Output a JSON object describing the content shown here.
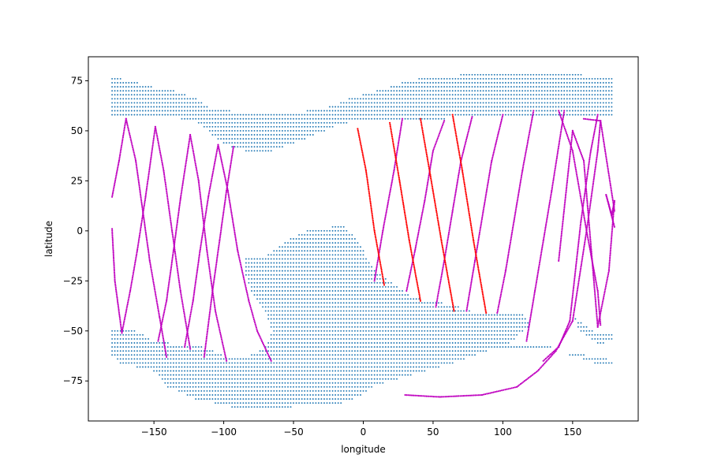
{
  "chart_data": {
    "type": "scatter",
    "title": "",
    "xlabel": "longitude",
    "ylabel": "latitude",
    "xlim": [
      -197,
      197
    ],
    "ylim": [
      -95,
      87
    ],
    "grid": false,
    "legend": "none",
    "x_ticks": [
      -150,
      -100,
      -50,
      0,
      50,
      100,
      150
    ],
    "y_ticks": [
      -75,
      -50,
      -25,
      0,
      25,
      50,
      75
    ],
    "x_tick_labels": [
      "−150",
      "−100",
      "−50",
      "0",
      "50",
      "100",
      "150"
    ],
    "y_tick_labels": [
      "−75",
      "−50",
      "−25",
      "0",
      "25",
      "50",
      "75"
    ],
    "colors": {
      "grid_points": "#1f77b4",
      "ascending_track": "#ff0000",
      "descending_track": "#bf00bf"
    },
    "series": [
      {
        "kind": "grid",
        "color": "#1f77b4",
        "spacing": 2,
        "regions": [
          [
            [
              -180,
              56
            ],
            [
              -180,
              77
            ],
            [
              -167,
              75
            ],
            [
              -150,
              72
            ],
            [
              -135,
              70
            ],
            [
              -122,
              67
            ],
            [
              -110,
              62
            ],
            [
              -95,
              60
            ],
            [
              -80,
              60
            ],
            [
              -60,
              60
            ],
            [
              -40,
              60
            ],
            [
              -25,
              62
            ],
            [
              -10,
              66
            ],
            [
              10,
              70
            ],
            [
              28,
              74
            ],
            [
              45,
              77
            ],
            [
              95,
              79
            ],
            [
              135,
              79
            ],
            [
              180,
              77
            ],
            [
              180,
              56
            ],
            [
              150,
              57
            ],
            [
              100,
              58
            ],
            [
              60,
              56
            ],
            [
              30,
              56
            ],
            [
              0,
              56
            ],
            [
              -20,
              52
            ],
            [
              -45,
              45
            ],
            [
              -65,
              40
            ],
            [
              -85,
              40
            ],
            [
              -100,
              43
            ],
            [
              -108,
              48
            ],
            [
              -120,
              55
            ],
            [
              -150,
              58
            ],
            [
              -180,
              56
            ]
          ],
          [
            [
              -85,
              -13
            ],
            [
              -70,
              -13
            ],
            [
              -55,
              -5
            ],
            [
              -40,
              0
            ],
            [
              -15,
              3
            ],
            [
              -5,
              -3
            ],
            [
              2,
              -12
            ],
            [
              10,
              -20
            ],
            [
              25,
              -28
            ],
            [
              35,
              -33
            ],
            [
              48,
              -35
            ],
            [
              65,
              -37
            ],
            [
              80,
              -41
            ],
            [
              100,
              -41
            ],
            [
              115,
              -41
            ],
            [
              120,
              -47
            ],
            [
              112,
              -52
            ],
            [
              105,
              -56
            ],
            [
              115,
              -57
            ],
            [
              145,
              -57
            ],
            [
              135,
              -58
            ],
            [
              90,
              -60
            ],
            [
              60,
              -67
            ],
            [
              30,
              -73
            ],
            [
              10,
              -77
            ],
            [
              0,
              -82
            ],
            [
              -15,
              -86
            ],
            [
              -50,
              -88
            ],
            [
              -95,
              -88
            ],
            [
              -120,
              -84
            ],
            [
              -140,
              -78
            ],
            [
              -150,
              -70
            ],
            [
              -175,
              -66
            ],
            [
              -180,
              -62
            ],
            [
              -180,
              -49
            ],
            [
              -165,
              -49
            ],
            [
              -150,
              -55
            ],
            [
              -115,
              -58
            ],
            [
              -100,
              -62
            ],
            [
              -80,
              -62
            ],
            [
              -70,
              -58
            ],
            [
              -65,
              -50
            ],
            [
              -70,
              -40
            ],
            [
              -80,
              -30
            ],
            [
              -85,
              -20
            ],
            [
              -85,
              -13
            ]
          ],
          [
            [
              150,
              -43
            ],
            [
              160,
              -47
            ],
            [
              168,
              -51
            ],
            [
              178,
              -51
            ],
            [
              180,
              -55
            ],
            [
              168,
              -57
            ],
            [
              155,
              -50
            ],
            [
              150,
              -43
            ]
          ],
          [
            [
              145,
              -60
            ],
            [
              160,
              -62
            ],
            [
              175,
              -64
            ],
            [
              180,
              -66
            ],
            [
              165,
              -66
            ],
            [
              148,
              -62
            ],
            [
              145,
              -60
            ]
          ]
        ]
      },
      {
        "name": "",
        "kind": "track",
        "color": "#bf00bf",
        "lines": [
          [
            [
              -180,
              17
            ],
            [
              -175,
              35
            ],
            [
              -170,
              56
            ],
            [
              -163,
              35
            ],
            [
              -158,
              10
            ],
            [
              -153,
              -15
            ],
            [
              -146,
              -43
            ],
            [
              -141,
              -63
            ]
          ],
          [
            [
              -180,
              1
            ],
            [
              -178,
              -25
            ],
            [
              -173,
              -51
            ],
            [
              -167,
              -30
            ],
            [
              -162,
              -10
            ],
            [
              -156,
              17
            ],
            [
              -149,
              52
            ],
            [
              -143,
              30
            ],
            [
              -137,
              0
            ],
            [
              -131,
              -30
            ],
            [
              -124,
              -59
            ]
          ],
          [
            [
              -147,
              -55
            ],
            [
              -141,
              -35
            ],
            [
              -136,
              -10
            ],
            [
              -131,
              16
            ],
            [
              -124,
              48
            ],
            [
              -118,
              25
            ],
            [
              -112,
              -10
            ],
            [
              -106,
              -40
            ],
            [
              -98,
              -65
            ]
          ],
          [
            [
              -128,
              -58
            ],
            [
              -122,
              -35
            ],
            [
              -117,
              -10
            ],
            [
              -111,
              17
            ],
            [
              -104,
              43
            ],
            [
              -97,
              20
            ],
            [
              -90,
              -10
            ],
            [
              -82,
              -35
            ],
            [
              -76,
              -50
            ],
            [
              -66,
              -65
            ]
          ],
          [
            [
              -114,
              -63
            ],
            [
              -108,
              -30
            ],
            [
              -103,
              -5
            ],
            [
              -98,
              20
            ],
            [
              -93,
              42
            ]
          ],
          [
            [
              8,
              -25
            ],
            [
              14,
              0
            ],
            [
              22,
              30
            ],
            [
              28,
              56
            ]
          ],
          [
            [
              31,
              -30
            ],
            [
              37,
              -10
            ],
            [
              44,
              15
            ],
            [
              50,
              40
            ],
            [
              58,
              55
            ]
          ],
          [
            [
              52,
              -38
            ],
            [
              58,
              -15
            ],
            [
              64,
              10
            ],
            [
              70,
              35
            ],
            [
              78,
              57
            ]
          ],
          [
            [
              74,
              -40
            ],
            [
              80,
              -15
            ],
            [
              86,
              10
            ],
            [
              92,
              35
            ],
            [
              100,
              58
            ]
          ],
          [
            [
              96,
              -41
            ],
            [
              102,
              -20
            ],
            [
              108,
              5
            ],
            [
              114,
              30
            ],
            [
              122,
              60
            ]
          ],
          [
            [
              117,
              -55
            ],
            [
              123,
              -30
            ],
            [
              129,
              -5
            ],
            [
              135,
              20
            ],
            [
              144,
              60
            ]
          ],
          [
            [
              129,
              -65
            ],
            [
              140,
              -58
            ],
            [
              148,
              -45
            ],
            [
              156,
              5
            ],
            [
              163,
              40
            ],
            [
              168,
              58
            ]
          ],
          [
            [
              140,
              -15
            ],
            [
              150,
              50
            ],
            [
              158,
              35
            ],
            [
              168,
              -48
            ],
            [
              176,
              -20
            ],
            [
              180,
              15
            ],
            [
              178,
              8
            ],
            [
              174,
              18
            ],
            [
              180,
              2
            ]
          ],
          [
            [
              30,
              -82
            ],
            [
              55,
              -83
            ],
            [
              85,
              -82
            ],
            [
              110,
              -78
            ],
            [
              125,
              -70
            ],
            [
              138,
              -60
            ],
            [
              150,
              -45
            ],
            [
              160,
              0
            ],
            [
              168,
              40
            ],
            [
              170,
              55
            ]
          ],
          [
            [
              158,
              56
            ],
            [
              170,
              55
            ],
            [
              180,
              10
            ]
          ],
          [
            [
              140,
              60
            ],
            [
              150,
              40
            ],
            [
              160,
              0
            ],
            [
              168,
              -30
            ],
            [
              170,
              -47
            ]
          ]
        ]
      },
      {
        "name": "",
        "kind": "track",
        "color": "#ff0000",
        "lines": [
          [
            [
              -4,
              51
            ],
            [
              2,
              30
            ],
            [
              8,
              0
            ],
            [
              15,
              -27
            ]
          ],
          [
            [
              19,
              54
            ],
            [
              26,
              25
            ],
            [
              33,
              -5
            ],
            [
              41,
              -35
            ]
          ],
          [
            [
              41,
              56
            ],
            [
              48,
              28
            ],
            [
              56,
              -5
            ],
            [
              65,
              -40
            ]
          ],
          [
            [
              64,
              58
            ],
            [
              71,
              30
            ],
            [
              79,
              -5
            ],
            [
              88,
              -41
            ]
          ]
        ]
      }
    ]
  }
}
